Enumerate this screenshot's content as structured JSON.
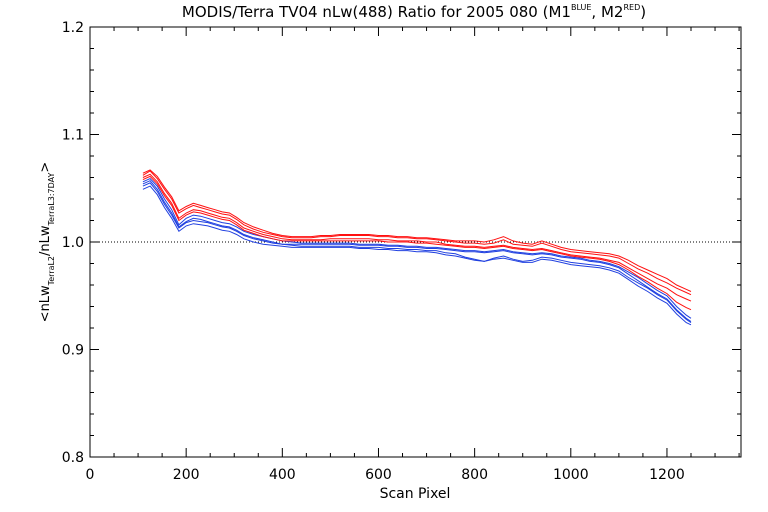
{
  "chart_data": {
    "type": "line",
    "title": {
      "main": "MODIS/Terra TV04 nLw(488) Ratio for 2005 080 (M1",
      "sup1": "BLUE",
      "mid": ", M2",
      "sup2": "RED",
      "end": ")"
    },
    "xlabel": "Scan Pixel",
    "ylabel": {
      "a": "<nLw",
      "sub1": "TerraL2",
      "b": "/nLw",
      "sub2": "TerraL3:7DAY",
      "c": ">"
    },
    "xlim": [
      0,
      1354
    ],
    "ylim": [
      0.8,
      1.2
    ],
    "xticks": [
      0,
      200,
      400,
      600,
      800,
      1000,
      1200
    ],
    "yticks": [
      0.8,
      0.9,
      1.0,
      1.1,
      1.2
    ],
    "ytick_labels": [
      "0.8",
      "0.9",
      "1.0",
      "1.1",
      "1.2"
    ],
    "reference_line": 1.0,
    "grid": false,
    "colors": {
      "M1": "#2040e0",
      "M2": "#ff1010",
      "axis": "#000000"
    },
    "x": [
      110,
      125,
      140,
      155,
      170,
      185,
      200,
      215,
      230,
      245,
      260,
      275,
      290,
      305,
      320,
      340,
      360,
      380,
      400,
      420,
      440,
      460,
      480,
      500,
      520,
      540,
      560,
      580,
      600,
      620,
      640,
      660,
      680,
      700,
      720,
      740,
      760,
      780,
      800,
      820,
      840,
      860,
      880,
      900,
      920,
      940,
      960,
      980,
      1000,
      1020,
      1040,
      1060,
      1080,
      1100,
      1120,
      1140,
      1160,
      1180,
      1200,
      1220,
      1240,
      1250
    ],
    "series": [
      {
        "name": "M1",
        "group": "M1",
        "values": [
          1.056,
          1.059,
          1.052,
          1.04,
          1.03,
          1.016,
          1.022,
          1.025,
          1.024,
          1.022,
          1.02,
          1.018,
          1.017,
          1.014,
          1.01,
          1.007,
          1.005,
          1.003,
          1.001,
          1.0,
          0.999,
          0.999,
          0.999,
          0.999,
          0.999,
          0.999,
          0.998,
          0.998,
          0.998,
          0.997,
          0.997,
          0.996,
          0.996,
          0.995,
          0.995,
          0.994,
          0.993,
          0.992,
          0.992,
          0.991,
          0.992,
          0.993,
          0.991,
          0.99,
          0.989,
          0.99,
          0.989,
          0.987,
          0.986,
          0.985,
          0.983,
          0.982,
          0.98,
          0.977,
          0.972,
          0.967,
          0.961,
          0.955,
          0.95,
          0.94,
          0.932,
          0.929
        ]
      },
      {
        "name": "M1",
        "group": "M1",
        "values": [
          1.054,
          1.057,
          1.049,
          1.037,
          1.027,
          1.014,
          1.019,
          1.022,
          1.021,
          1.019,
          1.017,
          1.015,
          1.014,
          1.011,
          1.007,
          1.004,
          1.002,
          1.0,
          0.998,
          0.997,
          0.996,
          0.996,
          0.996,
          0.996,
          0.996,
          0.996,
          0.995,
          0.995,
          0.995,
          0.994,
          0.994,
          0.993,
          0.993,
          0.992,
          0.992,
          0.99,
          0.989,
          0.986,
          0.984,
          0.982,
          0.985,
          0.987,
          0.984,
          0.982,
          0.983,
          0.986,
          0.985,
          0.983,
          0.981,
          0.98,
          0.979,
          0.978,
          0.976,
          0.973,
          0.967,
          0.962,
          0.957,
          0.951,
          0.946,
          0.936,
          0.928,
          0.925
        ]
      },
      {
        "name": "M1",
        "group": "M1",
        "values": [
          1.052,
          1.055,
          1.047,
          1.035,
          1.025,
          1.013,
          1.018,
          1.02,
          1.019,
          1.018,
          1.016,
          1.014,
          1.013,
          1.01,
          1.006,
          1.003,
          1.001,
          0.999,
          0.998,
          0.998,
          0.998,
          0.998,
          0.998,
          0.998,
          0.998,
          0.998,
          0.997,
          0.997,
          0.997,
          0.996,
          0.996,
          0.995,
          0.995,
          0.994,
          0.994,
          0.993,
          0.992,
          0.991,
          0.991,
          0.99,
          0.991,
          0.992,
          0.99,
          0.989,
          0.988,
          0.989,
          0.988,
          0.986,
          0.985,
          0.984,
          0.982,
          0.981,
          0.979,
          0.976,
          0.97,
          0.964,
          0.958,
          0.952,
          0.947,
          0.937,
          0.929,
          0.926
        ]
      },
      {
        "name": "M1",
        "group": "M1",
        "values": [
          1.049,
          1.052,
          1.044,
          1.032,
          1.022,
          1.01,
          1.015,
          1.017,
          1.016,
          1.015,
          1.013,
          1.011,
          1.01,
          1.007,
          1.003,
          1.0,
          0.998,
          0.997,
          0.996,
          0.995,
          0.995,
          0.995,
          0.995,
          0.995,
          0.995,
          0.995,
          0.994,
          0.994,
          0.993,
          0.993,
          0.992,
          0.992,
          0.991,
          0.991,
          0.99,
          0.988,
          0.987,
          0.985,
          0.983,
          0.982,
          0.984,
          0.985,
          0.983,
          0.981,
          0.981,
          0.984,
          0.983,
          0.981,
          0.979,
          0.978,
          0.977,
          0.976,
          0.974,
          0.971,
          0.965,
          0.959,
          0.954,
          0.948,
          0.943,
          0.933,
          0.925,
          0.923
        ]
      },
      {
        "name": "M2",
        "group": "M2",
        "values": [
          1.06,
          1.063,
          1.056,
          1.045,
          1.036,
          1.022,
          1.027,
          1.03,
          1.029,
          1.027,
          1.025,
          1.023,
          1.022,
          1.018,
          1.013,
          1.01,
          1.007,
          1.005,
          1.003,
          1.002,
          1.002,
          1.002,
          1.002,
          1.003,
          1.003,
          1.003,
          1.003,
          1.003,
          1.002,
          1.002,
          1.001,
          1.001,
          1.001,
          1.0,
          1.0,
          0.998,
          0.997,
          0.996,
          0.996,
          0.995,
          0.996,
          0.997,
          0.995,
          0.994,
          0.993,
          0.994,
          0.992,
          0.99,
          0.988,
          0.987,
          0.986,
          0.985,
          0.983,
          0.981,
          0.976,
          0.971,
          0.966,
          0.961,
          0.957,
          0.951,
          0.947,
          0.945
        ]
      },
      {
        "name": "M2",
        "group": "M2",
        "values": [
          1.062,
          1.066,
          1.059,
          1.049,
          1.04,
          1.027,
          1.031,
          1.034,
          1.032,
          1.03,
          1.028,
          1.026,
          1.025,
          1.021,
          1.016,
          1.012,
          1.009,
          1.007,
          1.005,
          1.004,
          1.004,
          1.004,
          1.005,
          1.005,
          1.006,
          1.006,
          1.006,
          1.006,
          1.005,
          1.005,
          1.004,
          1.004,
          1.003,
          1.003,
          1.002,
          1.001,
          1.0,
          0.999,
          0.999,
          0.998,
          0.999,
          1.002,
          0.998,
          0.997,
          0.996,
          0.999,
          0.996,
          0.993,
          0.991,
          0.99,
          0.989,
          0.988,
          0.987,
          0.985,
          0.98,
          0.975,
          0.971,
          0.966,
          0.962,
          0.957,
          0.953,
          0.951
        ]
      },
      {
        "name": "M2",
        "group": "M2",
        "values": [
          1.058,
          1.061,
          1.054,
          1.043,
          1.034,
          1.02,
          1.025,
          1.028,
          1.027,
          1.025,
          1.023,
          1.021,
          1.02,
          1.016,
          1.011,
          1.008,
          1.005,
          1.003,
          1.001,
          1.001,
          1.001,
          1.001,
          1.001,
          1.001,
          1.001,
          1.001,
          1.001,
          1.001,
          1.001,
          1.0,
          1.0,
          1.0,
          0.999,
          0.999,
          0.998,
          0.997,
          0.996,
          0.995,
          0.995,
          0.994,
          0.995,
          0.996,
          0.994,
          0.993,
          0.992,
          0.993,
          0.991,
          0.989,
          0.987,
          0.986,
          0.985,
          0.984,
          0.982,
          0.979,
          0.974,
          0.968,
          0.963,
          0.957,
          0.952,
          0.944,
          0.939,
          0.937
        ]
      },
      {
        "name": "M2",
        "group": "M2",
        "values": [
          1.064,
          1.067,
          1.061,
          1.051,
          1.042,
          1.029,
          1.033,
          1.036,
          1.034,
          1.032,
          1.03,
          1.028,
          1.027,
          1.023,
          1.018,
          1.014,
          1.011,
          1.008,
          1.006,
          1.005,
          1.005,
          1.005,
          1.006,
          1.006,
          1.007,
          1.007,
          1.007,
          1.007,
          1.006,
          1.006,
          1.005,
          1.005,
          1.004,
          1.004,
          1.003,
          1.002,
          1.001,
          1.001,
          1.001,
          1.0,
          1.002,
          1.005,
          1.001,
          0.999,
          0.998,
          1.001,
          0.998,
          0.995,
          0.993,
          0.992,
          0.991,
          0.99,
          0.989,
          0.987,
          0.983,
          0.978,
          0.974,
          0.97,
          0.966,
          0.96,
          0.956,
          0.954
        ]
      }
    ]
  }
}
